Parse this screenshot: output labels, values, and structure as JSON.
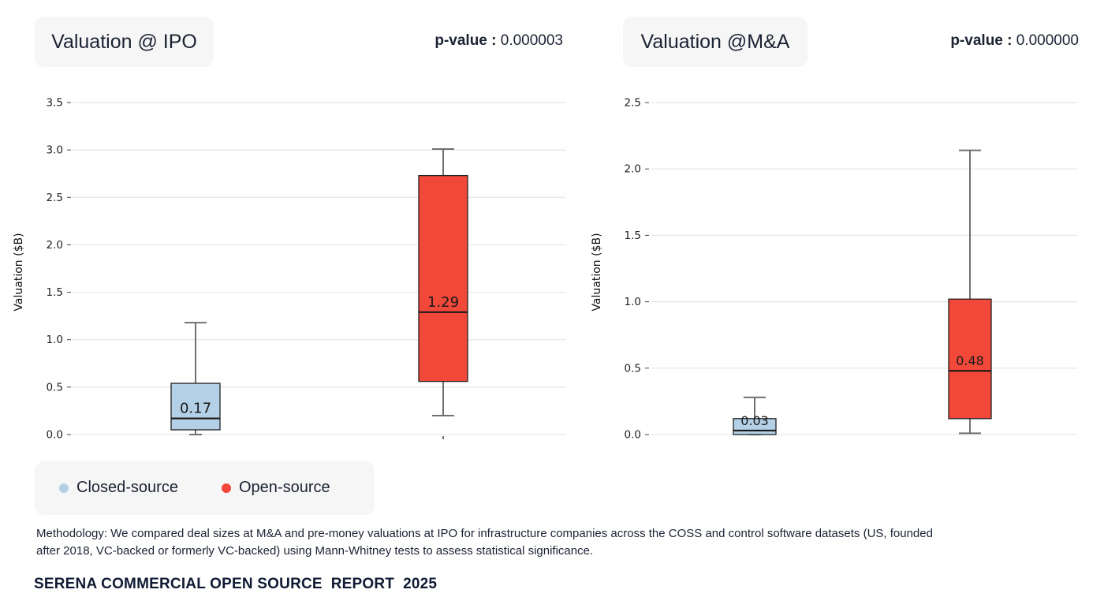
{
  "colors": {
    "closed": "#b3d0e6",
    "open": "#f2483a",
    "grid": "#e6e6e6",
    "whisker": "#707070",
    "median": "#1a1a1a"
  },
  "legend": {
    "items": [
      {
        "label": "Closed-source",
        "color": "#b3d0e6"
      },
      {
        "label": "Open-source",
        "color": "#f2483a"
      }
    ]
  },
  "methodology": "Methodology: We compared deal sizes at M&A and pre-money valuations at IPO for infrastructure companies across the COSS and control software datasets (US, founded after 2018, VC-backed or formerly VC-backed) using Mann-Whitney tests to assess statistical significance.",
  "footer": "SERENA COMMERCIAL OPEN SOURCE  REPORT  2025",
  "chart_data": [
    {
      "type": "box",
      "title": "Valuation @ IPO",
      "pvalue_label": "p-value :",
      "pvalue": "0.000003",
      "ylabel": "Valuation ($B)",
      "ylim": [
        0,
        3.5
      ],
      "yticks": [
        "0.0",
        "0.5",
        "1.0",
        "1.5",
        "2.0",
        "2.5",
        "3.0",
        "3.5"
      ],
      "grid": true,
      "boxes": [
        {
          "group": "Closed-source",
          "min": 0.0,
          "q1": 0.05,
          "median": 0.17,
          "q3": 0.54,
          "max": 1.18,
          "median_label": "0.17"
        },
        {
          "group": "Open-source",
          "min": 0.2,
          "q1": 0.56,
          "median": 1.29,
          "q3": 2.73,
          "max": 3.01,
          "median_label": "1.29"
        }
      ]
    },
    {
      "type": "box",
      "title": "Valuation @M&A",
      "pvalue_label": "p-value :",
      "pvalue": "0.000000",
      "ylabel": "Valuation ($B)",
      "ylim": [
        0,
        2.5
      ],
      "yticks": [
        "0.0",
        "0.5",
        "1.0",
        "1.5",
        "2.0",
        "2.5"
      ],
      "grid": true,
      "boxes": [
        {
          "group": "Closed-source",
          "min": 0.0,
          "q1": 0.0,
          "median": 0.03,
          "q3": 0.12,
          "max": 0.28,
          "median_label": "0.03"
        },
        {
          "group": "Open-source",
          "min": 0.01,
          "q1": 0.12,
          "median": 0.48,
          "q3": 1.02,
          "max": 2.14,
          "median_label": "0.48"
        }
      ]
    }
  ]
}
